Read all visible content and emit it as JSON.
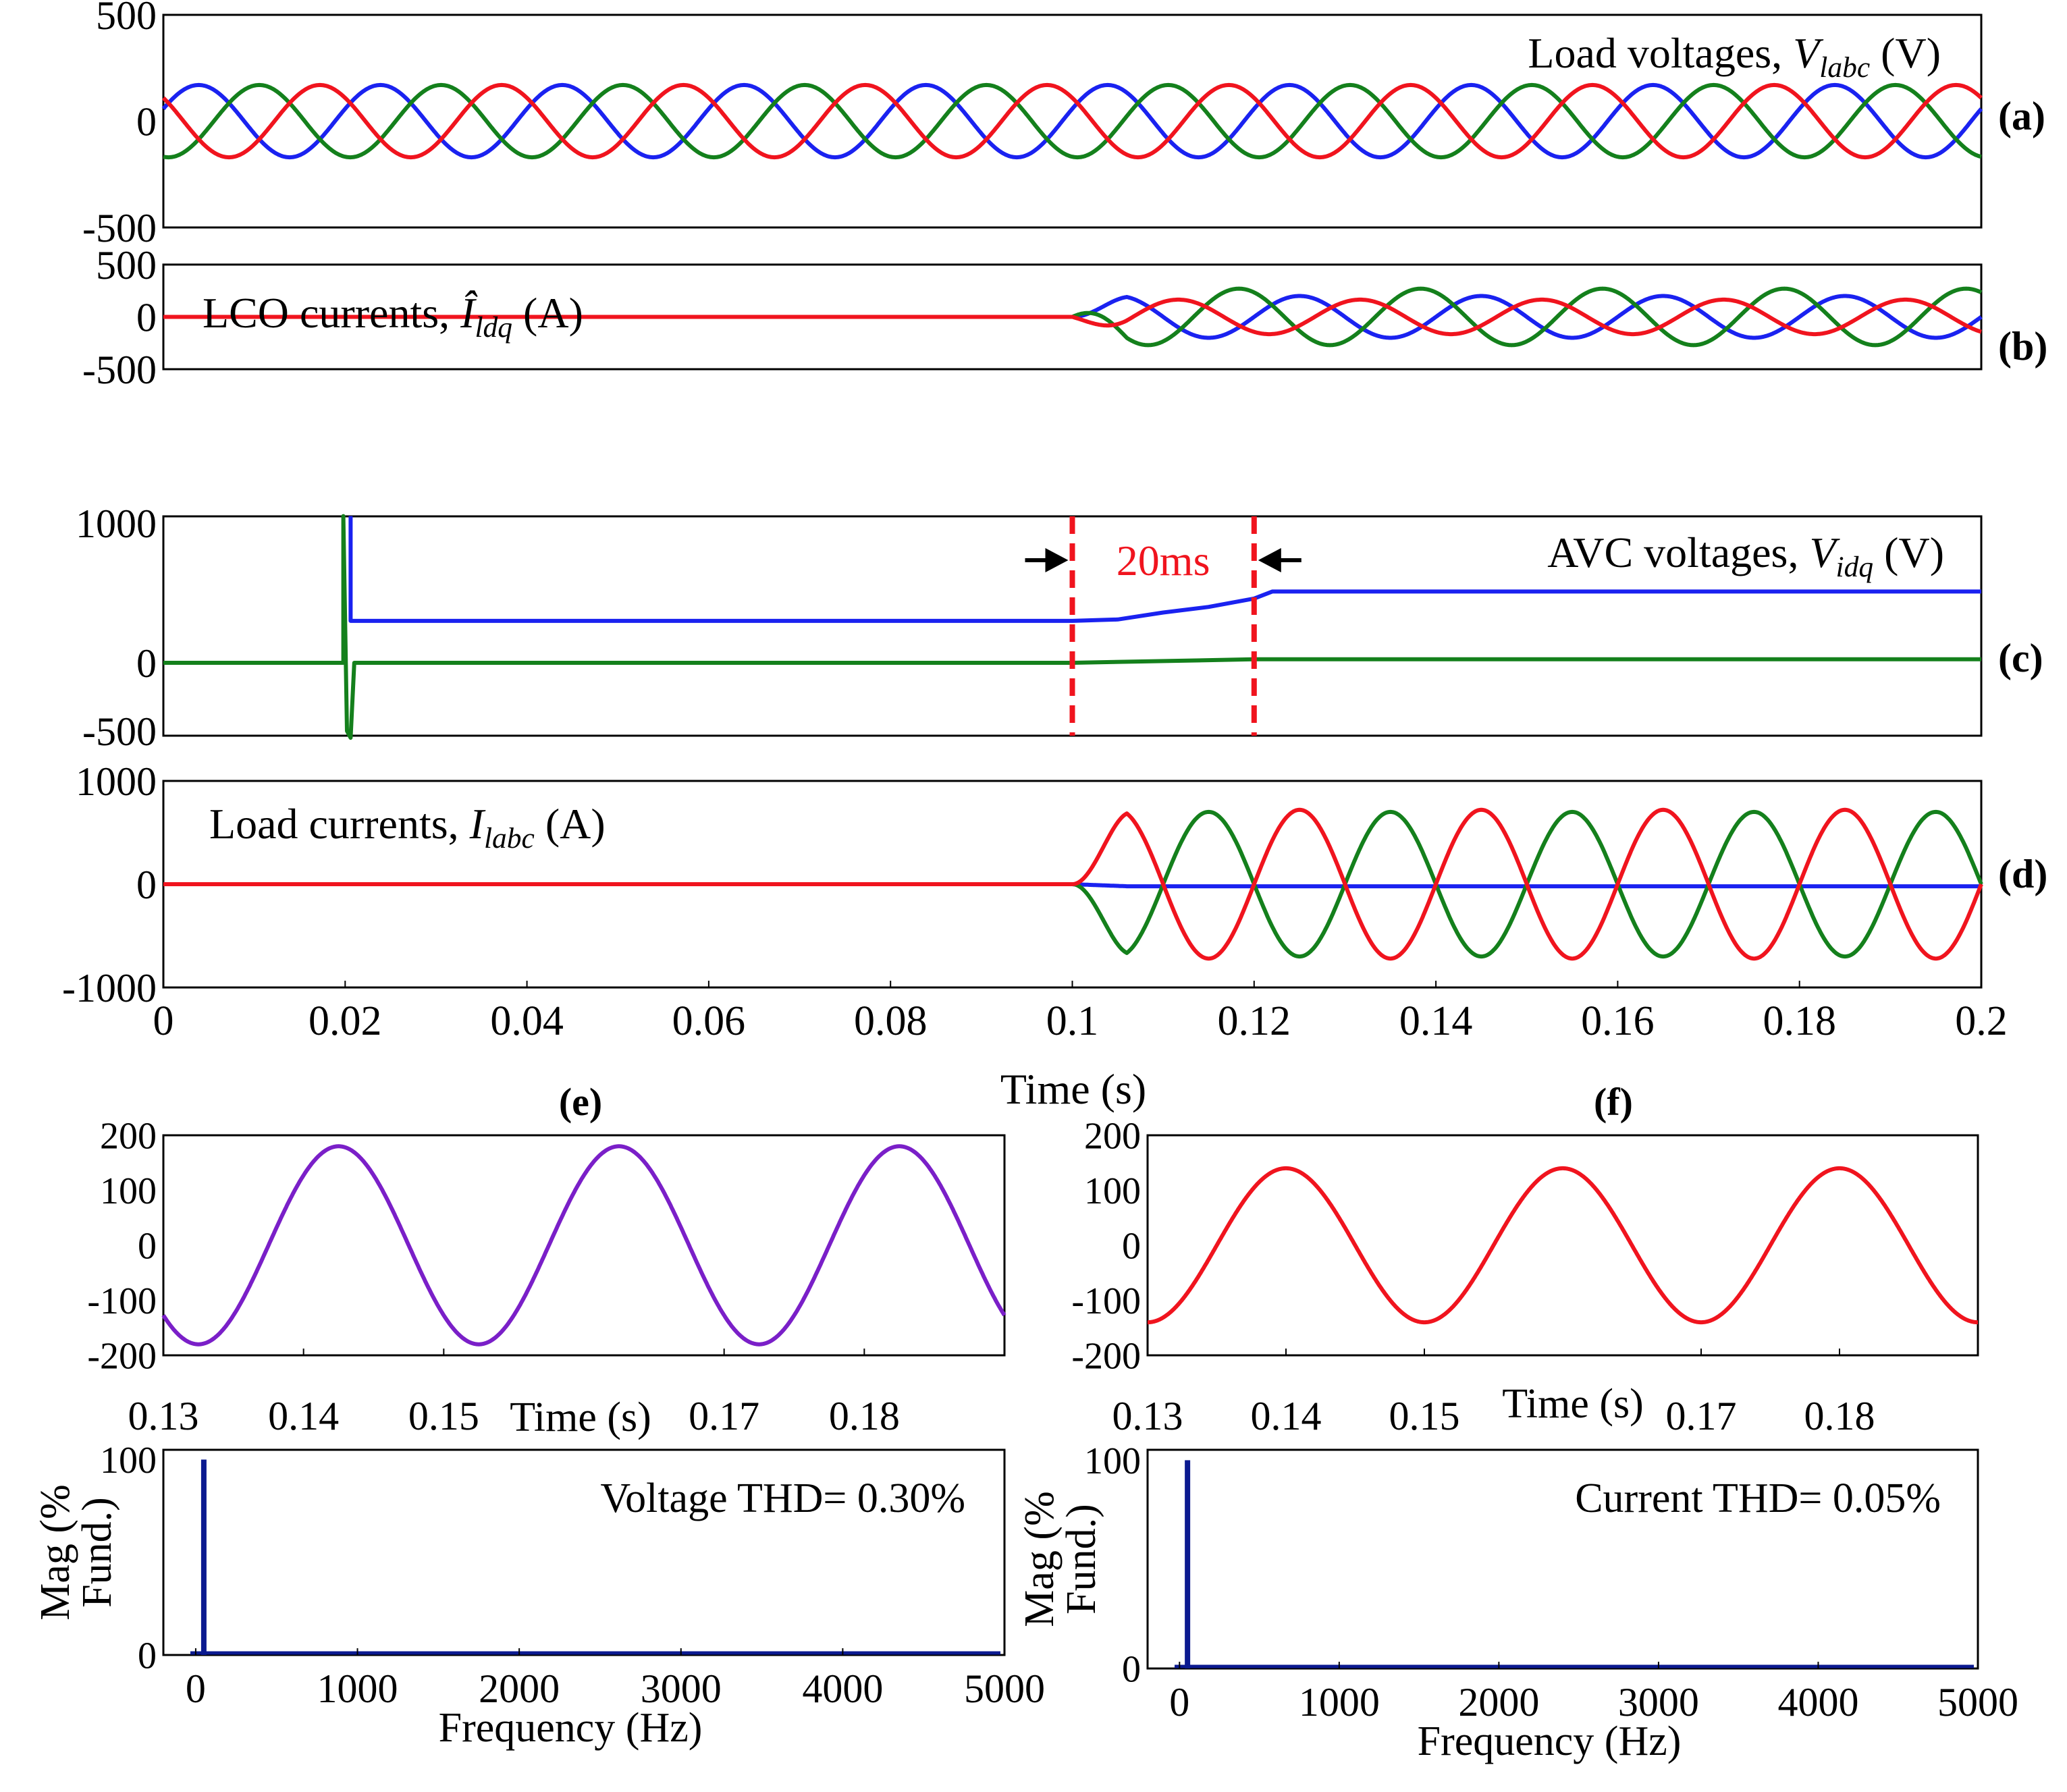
{
  "figure": {
    "xlabel_main": "Time (s)"
  },
  "colors": {
    "a": "#1a22f0",
    "b": "#14801c",
    "c": "#f0141e",
    "purple": "#7a1fc8",
    "fft": "#0b1a90",
    "marker": "#f0141e"
  },
  "chart_data": [
    {
      "id": "a",
      "type": "line",
      "panel_label": "(a)",
      "title": "Load voltages, ",
      "title_sym": "V",
      "title_sub": "labc",
      "title_unit": " (V)",
      "xlim": [
        0,
        0.2
      ],
      "ylim": [
        -500,
        500
      ],
      "yticks": [
        500,
        0,
        -500
      ],
      "series": [
        {
          "color_key": "a",
          "amplitude": 170,
          "freq_hz": 50,
          "phase_deg": 20
        },
        {
          "color_key": "b",
          "amplitude": 170,
          "freq_hz": 50,
          "phase_deg": -100
        },
        {
          "color_key": "c",
          "amplitude": 170,
          "freq_hz": 50,
          "phase_deg": 140
        }
      ]
    },
    {
      "id": "b",
      "type": "line",
      "panel_label": "(b)",
      "title": "LCO currents, ",
      "title_sym": "Î",
      "title_sub": "ldq",
      "title_unit": " (A)",
      "xlim": [
        0,
        0.2
      ],
      "ylim": [
        -500,
        500
      ],
      "yticks": [
        500,
        0,
        -500
      ],
      "series": [
        {
          "color_key": "a",
          "start_s": 0.1,
          "amplitude": 200,
          "freq_hz": 50,
          "phase_deg": 0
        },
        {
          "color_key": "b",
          "start_s": 0.1,
          "amplitude": 270,
          "freq_hz": 50,
          "phase_deg": 120
        },
        {
          "color_key": "c",
          "start_s": 0.1,
          "amplitude": 165,
          "freq_hz": 50,
          "phase_deg": -120
        }
      ]
    },
    {
      "id": "c",
      "type": "line",
      "panel_label": "(c)",
      "title": "AVC voltages, ",
      "title_sym": "V",
      "title_sub": "idq",
      "title_unit": " (V)",
      "xlim": [
        0,
        0.2
      ],
      "ylim": [
        -500,
        1000
      ],
      "yticks": [
        1000,
        0,
        -500
      ],
      "annotation": {
        "text": "20ms",
        "x1": 0.1,
        "x2": 0.12
      },
      "series": [
        {
          "color_key": "a",
          "points": [
            [
              0.0206,
              1050
            ],
            [
              0.0206,
              300
            ],
            [
              0.1,
              300
            ],
            [
              0.105,
              310
            ],
            [
              0.11,
              360
            ],
            [
              0.115,
              400
            ],
            [
              0.12,
              460
            ],
            [
              0.122,
              510
            ],
            [
              0.2,
              510
            ]
          ]
        },
        {
          "color_key": "b",
          "points": [
            [
              0,
              0
            ],
            [
              0.0198,
              0
            ],
            [
              0.0198,
              1050
            ],
            [
              0.0202,
              -500
            ],
            [
              0.0206,
              -550
            ],
            [
              0.021,
              0
            ],
            [
              0.1,
              0
            ],
            [
              0.12,
              25
            ],
            [
              0.2,
              25
            ]
          ]
        }
      ]
    },
    {
      "id": "d",
      "type": "line",
      "panel_label": "(d)",
      "title": "Load currents, ",
      "title_sym": "I",
      "title_sub": "labc",
      "title_unit": " (A)",
      "xlim": [
        0,
        0.2
      ],
      "ylim": [
        -1000,
        1000
      ],
      "yticks": [
        1000,
        0,
        -1000
      ],
      "xticks": [
        0,
        0.02,
        0.04,
        0.06,
        0.08,
        0.1,
        0.12,
        0.14,
        0.16,
        0.18,
        0.2
      ],
      "series": [
        {
          "color_key": "a",
          "start_s": 0.1,
          "amplitude": 0,
          "freq_hz": 50,
          "phase_deg": 0,
          "offset": -20
        },
        {
          "color_key": "b",
          "start_s": 0.1,
          "amplitude": 700,
          "freq_hz": 50,
          "phase_deg": 180
        },
        {
          "color_key": "c",
          "start_s": 0.1,
          "amplitude": 720,
          "freq_hz": 50,
          "phase_deg": 0
        }
      ]
    },
    {
      "id": "e_time",
      "type": "line",
      "panel_label": "(e)",
      "xlabel": "Time (s)",
      "xlim": [
        0.13,
        0.19
      ],
      "ylim": [
        -200,
        200
      ],
      "yticks": [
        200,
        100,
        0,
        -100,
        -200
      ],
      "xticks": [
        0.13,
        0.14,
        0.15,
        0.17,
        0.18
      ],
      "series": [
        {
          "color_key": "purple",
          "amplitude": 180,
          "freq_hz": 50,
          "phase_deg": 45
        }
      ]
    },
    {
      "id": "f_time",
      "type": "line",
      "panel_label": "(f)",
      "xlabel": "Time (s)",
      "xlim": [
        0.13,
        0.19
      ],
      "ylim": [
        -200,
        200
      ],
      "yticks": [
        200,
        100,
        0,
        -100,
        -200
      ],
      "xticks": [
        0.13,
        0.14,
        0.15,
        0.17,
        0.18
      ],
      "series": [
        {
          "color_key": "c",
          "amplitude": 140,
          "freq_hz": 50,
          "phase_deg": 90
        }
      ]
    },
    {
      "id": "e_fft",
      "type": "bar",
      "xlabel": "Frequency (Hz)",
      "ylabel_line1": "Mag (%",
      "ylabel_line2": "Fund.)",
      "xlim": [
        -200,
        5000
      ],
      "ylim": [
        0,
        105
      ],
      "yticks": [
        100,
        0
      ],
      "xticks": [
        0,
        1000,
        2000,
        3000,
        4000,
        5000
      ],
      "thd_label": "Voltage THD= 0.30%",
      "bars": [
        {
          "x": 50,
          "value": 100
        }
      ]
    },
    {
      "id": "f_fft",
      "type": "bar",
      "xlabel": "Frequency (Hz)",
      "ylabel_line1": "Mag (%",
      "ylabel_line2": "Fund.)",
      "xlim": [
        -200,
        5000
      ],
      "ylim": [
        0,
        105
      ],
      "yticks": [
        100,
        0
      ],
      "xticks": [
        0,
        1000,
        2000,
        3000,
        4000,
        5000
      ],
      "thd_label": "Current THD= 0.05%",
      "bars": [
        {
          "x": 50,
          "value": 100
        }
      ]
    }
  ]
}
